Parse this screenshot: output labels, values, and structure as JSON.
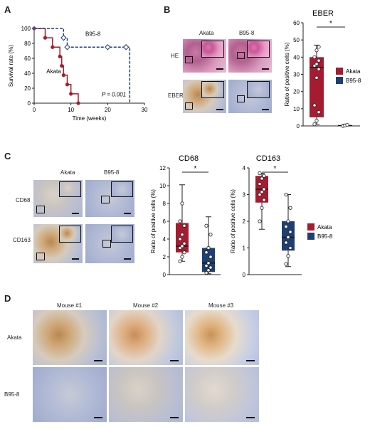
{
  "panels": {
    "a": {
      "letter": "A"
    },
    "b": {
      "letter": "B",
      "col_akata": "Akata",
      "col_b958": "B95-8",
      "row_he": "HE",
      "row_eber": "EBER"
    },
    "c": {
      "letter": "C",
      "col_akata": "Akata",
      "col_b958": "B95-8",
      "row_cd68": "CD68",
      "row_cd163": "CD163"
    },
    "d": {
      "letter": "D",
      "col1": "Mouse #1",
      "col2": "Mouse #2",
      "col3": "Mouse #3",
      "row_akata": "Akata",
      "row_b958": "B95-8"
    }
  },
  "colors": {
    "akata": "#a51c30",
    "b958": "#1f3f73"
  },
  "chart_data": [
    {
      "type": "line",
      "panel": "A",
      "xlabel": "Time (weeks)",
      "ylabel": "Survival rate (%)",
      "xlim": [
        0,
        30
      ],
      "ylim": [
        0,
        100
      ],
      "xticks": [
        0,
        10,
        20,
        30
      ],
      "yticks": [
        0,
        20,
        40,
        60,
        80,
        100
      ],
      "annotation": "P = 0.001",
      "series": [
        {
          "name": "Akata",
          "style": "solid",
          "color": "#a51c30",
          "steps": [
            [
              0,
              100
            ],
            [
              3,
              100
            ],
            [
              3,
              87.5
            ],
            [
              5,
              87.5
            ],
            [
              5,
              75
            ],
            [
              7,
              75
            ],
            [
              7,
              62.5
            ],
            [
              7.5,
              62.5
            ],
            [
              7.5,
              50
            ],
            [
              8,
              50
            ],
            [
              8,
              37.5
            ],
            [
              9,
              37.5
            ],
            [
              9,
              25
            ],
            [
              10,
              25
            ],
            [
              10,
              12.5
            ],
            [
              12,
              12.5
            ],
            [
              12,
              0
            ]
          ],
          "markers": [
            [
              3,
              87.5
            ],
            [
              5,
              75
            ],
            [
              7,
              62.5
            ],
            [
              7.5,
              50
            ],
            [
              8,
              37.5
            ],
            [
              9,
              25
            ],
            [
              10,
              12.5
            ],
            [
              12,
              0
            ]
          ]
        },
        {
          "name": "B95-8",
          "style": "dashed",
          "color": "#1f3f73",
          "steps": [
            [
              0,
              100
            ],
            [
              8,
              100
            ],
            [
              8,
              87.5
            ],
            [
              9,
              87.5
            ],
            [
              9,
              75
            ],
            [
              26,
              75
            ],
            [
              26,
              0
            ]
          ],
          "markers": [
            [
              8,
              87.5
            ],
            [
              9,
              75
            ],
            [
              20,
              75
            ],
            [
              25,
              75
            ]
          ]
        }
      ]
    },
    {
      "type": "box",
      "panel": "B",
      "title": "EBER",
      "ylabel": "Ratio of positive cells (%)",
      "ylim": [
        0,
        60
      ],
      "yticks": [
        0,
        10,
        20,
        30,
        40,
        50,
        60
      ],
      "significance": "*",
      "series": [
        {
          "name": "Akata",
          "min": 1,
          "q1": 5,
          "median": 34,
          "q3": 40,
          "max": 47,
          "points": [
            1,
            3,
            8,
            12,
            28,
            33,
            35,
            36,
            38,
            40,
            44,
            46
          ]
        },
        {
          "name": "B95-8",
          "min": 0,
          "q1": 0,
          "median": 0.2,
          "q3": 0.5,
          "max": 1,
          "points": [
            0,
            0.3,
            0.6
          ]
        }
      ]
    },
    {
      "type": "box",
      "panel": "C",
      "title": "CD68",
      "ylabel": "Ratio of positive cells (%)",
      "ylim": [
        0,
        12
      ],
      "yticks": [
        0,
        2,
        4,
        6,
        8,
        10,
        12
      ],
      "significance": "*",
      "series": [
        {
          "name": "Akata",
          "min": 1.5,
          "q1": 2.5,
          "median": 3.2,
          "q3": 5.8,
          "max": 10.1,
          "points": [
            1.5,
            2,
            2.5,
            3,
            3.2,
            3.5,
            4,
            4.5,
            5.5,
            6,
            8
          ]
        },
        {
          "name": "B95-8",
          "min": 0.1,
          "q1": 0.3,
          "median": 1.3,
          "q3": 3,
          "max": 6.5,
          "points": [
            0.2,
            0.5,
            0.8,
            1,
            1.3,
            2,
            2.5,
            3,
            4.5,
            5.5
          ]
        }
      ]
    },
    {
      "type": "box",
      "panel": "C",
      "title": "CD163",
      "ylabel": "Ratio of positive cells (%)",
      "ylim": [
        0,
        4
      ],
      "yticks": [
        0,
        1,
        2,
        3,
        4
      ],
      "significance": "*",
      "legend": [
        "Akata",
        "B95-8"
      ],
      "series": [
        {
          "name": "Akata",
          "min": 1.7,
          "q1": 2.7,
          "median": 3.2,
          "q3": 3.7,
          "max": 3.8,
          "points": [
            2,
            2.5,
            2.8,
            3,
            3.1,
            3.2,
            3.4,
            3.6,
            3.7,
            3.8
          ]
        },
        {
          "name": "B95-8",
          "min": 0.3,
          "q1": 0.9,
          "median": 1.4,
          "q3": 2,
          "max": 3,
          "points": [
            0.4,
            0.7,
            1,
            1.2,
            1.4,
            1.6,
            1.8,
            2,
            2.5,
            3
          ]
        }
      ]
    }
  ]
}
